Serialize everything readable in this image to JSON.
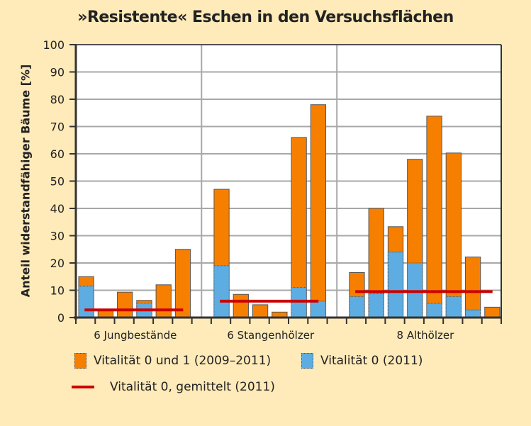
{
  "chart_data": {
    "type": "bar",
    "stacked": true,
    "title": "»Resistente« Eschen in den Versuchsflächen",
    "xlabel": "",
    "ylabel": "Anteil widerstandfähiger Bäume [%]",
    "ylim": [
      0,
      100
    ],
    "yticks": [
      0,
      10,
      20,
      30,
      40,
      50,
      60,
      70,
      80,
      90,
      100
    ],
    "grid": true,
    "groups": [
      {
        "label": "6 Jungbestände",
        "total": [
          15,
          3,
          9.3,
          6.3,
          12,
          25
        ],
        "vitality0": [
          11.5,
          0,
          0,
          5.3,
          0,
          0
        ],
        "mean_vitality0": 2.8
      },
      {
        "label": "6 Stangenhölzer",
        "total": [
          47,
          8.5,
          4.7,
          2,
          66,
          78
        ],
        "vitality0": [
          19,
          0,
          0,
          0,
          11,
          6
        ],
        "mean_vitality0": 6
      },
      {
        "label": "8 Althölzer",
        "total": [
          16.5,
          40,
          33.3,
          58,
          73.8,
          60.3,
          22.2,
          3.8
        ],
        "vitality0": [
          7.7,
          8.7,
          24,
          20,
          5.2,
          7.7,
          2.8,
          0
        ],
        "mean_vitality0": 9.5
      }
    ],
    "legend": [
      {
        "label": "Vitalität 0 und 1 (2009–2011)",
        "color": "#F77F00",
        "kind": "bar"
      },
      {
        "label": "Vitalität 0 (2011)",
        "color": "#5DADE2",
        "kind": "bar"
      },
      {
        "label": "Vitalität 0, gemittelt (2011)",
        "color": "#CC0000",
        "kind": "line"
      }
    ],
    "legend_position": "bottom"
  }
}
